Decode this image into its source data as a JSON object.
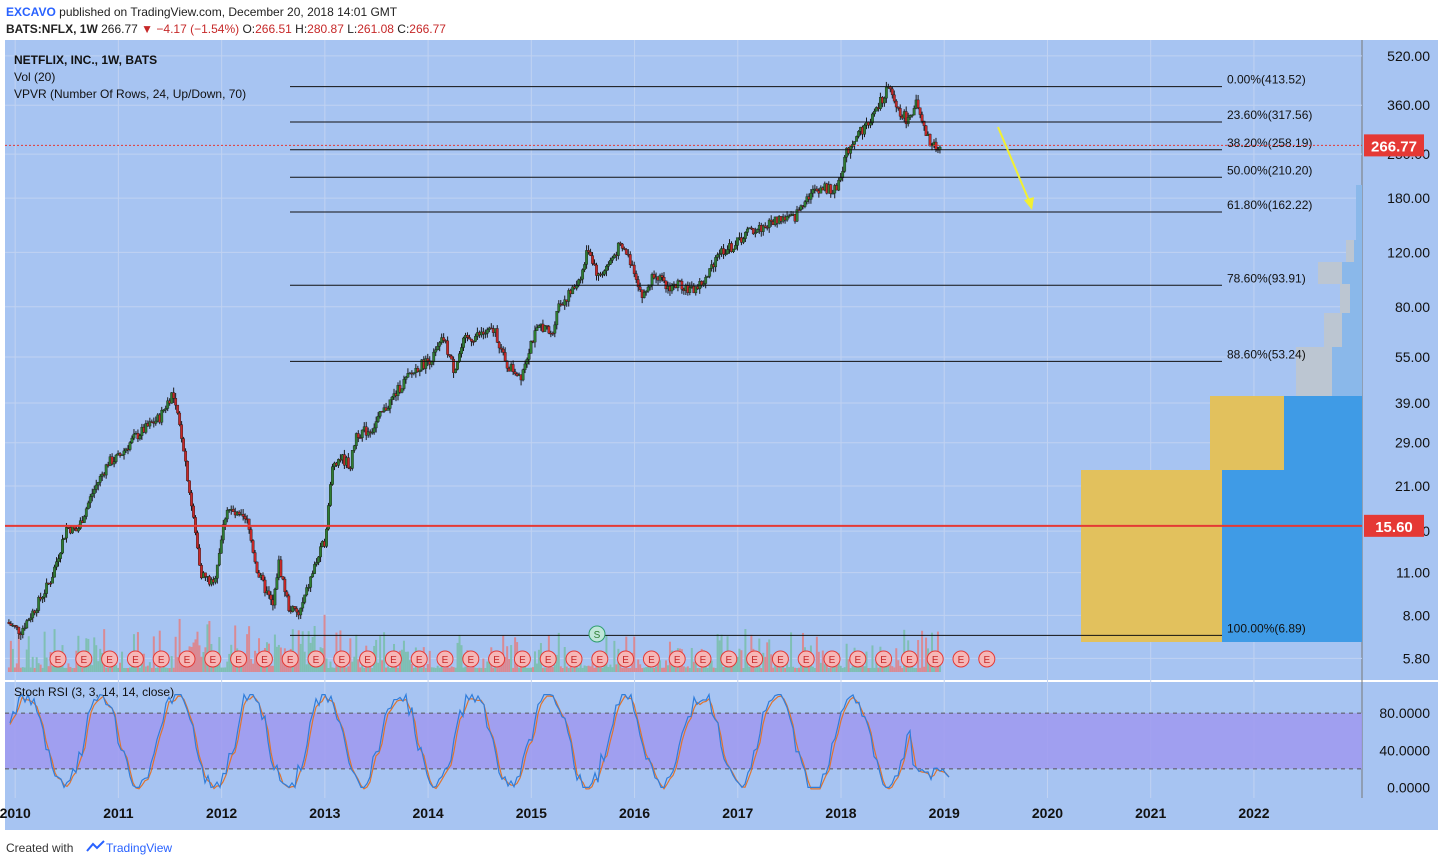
{
  "header": {
    "publisher": "EXCAVO",
    "published_text": "published on TradingView.com, December 20, 2018 14:01 GMT",
    "symbol": "BATS:NFLX, 1W",
    "last": "266.77",
    "change": "▼ −4.17 (−1.54%)",
    "ohlc_o_label": "O:",
    "ohlc_o": "266.51",
    "ohlc_h_label": "H:",
    "ohlc_h": "280.87",
    "ohlc_l_label": "L:",
    "ohlc_l": "261.08",
    "ohlc_c_label": "C:",
    "ohlc_c": "266.77"
  },
  "legend": {
    "title": "NETFLIX, INC., 1W, BATS",
    "vol": "Vol (20)",
    "vpvr": "VPVR (Number Of Rows, 24, Up/Down, 70)",
    "stoch": "Stoch RSI (3, 3, 14, 14, close)"
  },
  "colors": {
    "background": "#a7c4f2",
    "up": "#2e7d32",
    "down": "#c62828",
    "support_line": "#e53935",
    "price_badge": "#e53935",
    "stoch_band": "#9f99f0",
    "stoch_k": "#2f7ddb",
    "stoch_d": "#e0742e",
    "vpvr_up": "#3f9be6",
    "vpvr_down": "#e2c15d",
    "arrow": "#f2f032"
  },
  "chart_data": {
    "type": "line",
    "title": "NETFLIX, INC., 1W, BATS",
    "price_axis_ticks": [
      "520.00",
      "360.00",
      "250.00",
      "180.00",
      "120.00",
      "80.00",
      "55.00",
      "39.00",
      "29.00",
      "21.00",
      "15.00",
      "11.00",
      "8.00",
      "5.80"
    ],
    "scale": "log",
    "y_range": [
      5.4,
      560
    ],
    "x_ticks": [
      "2010",
      "2011",
      "2012",
      "2013",
      "2014",
      "2015",
      "2016",
      "2017",
      "2018",
      "2019",
      "2020",
      "2021",
      "2022"
    ],
    "last_price_label": "266.77",
    "support_price_label": "15.60",
    "support_price": 15.6,
    "fib_levels": [
      {
        "ratio": "0.00%",
        "price": 413.52,
        "label": "0.00%(413.52)"
      },
      {
        "ratio": "23.60%",
        "price": 317.56,
        "label": "23.60%(317.56)"
      },
      {
        "ratio": "38.20%",
        "price": 258.19,
        "label": "38.20%(258.19)"
      },
      {
        "ratio": "50.00%",
        "price": 210.2,
        "label": "50.00%(210.20)"
      },
      {
        "ratio": "61.80%",
        "price": 162.22,
        "label": "61.80%(162.22)"
      },
      {
        "ratio": "78.60%",
        "price": 93.91,
        "label": "78.60%(93.91)"
      },
      {
        "ratio": "88.60%",
        "price": 53.24,
        "label": "88.60%(53.24)"
      },
      {
        "ratio": "100.00%",
        "price": 6.89,
        "label": "100.00%(6.89)"
      }
    ],
    "price_series": [
      {
        "t": 2009.92,
        "p": 7.6
      },
      {
        "t": 2010.05,
        "p": 7.1
      },
      {
        "t": 2010.2,
        "p": 8.5
      },
      {
        "t": 2010.35,
        "p": 10.5
      },
      {
        "t": 2010.5,
        "p": 15.5
      },
      {
        "t": 2010.6,
        "p": 15.0
      },
      {
        "t": 2010.75,
        "p": 20.0
      },
      {
        "t": 2010.9,
        "p": 25.0
      },
      {
        "t": 2011.0,
        "p": 26.0
      },
      {
        "t": 2011.15,
        "p": 30.0
      },
      {
        "t": 2011.3,
        "p": 33.0
      },
      {
        "t": 2011.4,
        "p": 35.0
      },
      {
        "t": 2011.52,
        "p": 42.0
      },
      {
        "t": 2011.62,
        "p": 30.0
      },
      {
        "t": 2011.72,
        "p": 17.0
      },
      {
        "t": 2011.8,
        "p": 11.0
      },
      {
        "t": 2011.92,
        "p": 10.0
      },
      {
        "t": 2012.05,
        "p": 18.0
      },
      {
        "t": 2012.12,
        "p": 17.0
      },
      {
        "t": 2012.25,
        "p": 16.0
      },
      {
        "t": 2012.35,
        "p": 11.0
      },
      {
        "t": 2012.5,
        "p": 8.5
      },
      {
        "t": 2012.55,
        "p": 12.0
      },
      {
        "t": 2012.65,
        "p": 8.5
      },
      {
        "t": 2012.75,
        "p": 8.0
      },
      {
        "t": 2012.9,
        "p": 11.5
      },
      {
        "t": 2013.0,
        "p": 14.0
      },
      {
        "t": 2013.08,
        "p": 25.0
      },
      {
        "t": 2013.15,
        "p": 26.0
      },
      {
        "t": 2013.25,
        "p": 24.5
      },
      {
        "t": 2013.3,
        "p": 31.0
      },
      {
        "t": 2013.45,
        "p": 32.0
      },
      {
        "t": 2013.6,
        "p": 38.0
      },
      {
        "t": 2013.75,
        "p": 45.0
      },
      {
        "t": 2013.9,
        "p": 51.0
      },
      {
        "t": 2014.05,
        "p": 55.0
      },
      {
        "t": 2014.15,
        "p": 63.0
      },
      {
        "t": 2014.25,
        "p": 50.0
      },
      {
        "t": 2014.35,
        "p": 62.0
      },
      {
        "t": 2014.5,
        "p": 65.0
      },
      {
        "t": 2014.65,
        "p": 67.0
      },
      {
        "t": 2014.75,
        "p": 52.0
      },
      {
        "t": 2014.9,
        "p": 48.0
      },
      {
        "t": 2015.0,
        "p": 62.0
      },
      {
        "t": 2015.1,
        "p": 70.0
      },
      {
        "t": 2015.2,
        "p": 64.0
      },
      {
        "t": 2015.25,
        "p": 80.0
      },
      {
        "t": 2015.4,
        "p": 90.0
      },
      {
        "t": 2015.5,
        "p": 105.0
      },
      {
        "t": 2015.55,
        "p": 125.0
      },
      {
        "t": 2015.65,
        "p": 100.0
      },
      {
        "t": 2015.75,
        "p": 110.0
      },
      {
        "t": 2015.85,
        "p": 125.0
      },
      {
        "t": 2015.92,
        "p": 120.0
      },
      {
        "t": 2016.0,
        "p": 105.0
      },
      {
        "t": 2016.08,
        "p": 85.0
      },
      {
        "t": 2016.2,
        "p": 105.0
      },
      {
        "t": 2016.3,
        "p": 92.0
      },
      {
        "t": 2016.45,
        "p": 95.0
      },
      {
        "t": 2016.55,
        "p": 90.0
      },
      {
        "t": 2016.7,
        "p": 98.0
      },
      {
        "t": 2016.8,
        "p": 120.0
      },
      {
        "t": 2016.95,
        "p": 125.0
      },
      {
        "t": 2017.1,
        "p": 140.0
      },
      {
        "t": 2017.25,
        "p": 145.0
      },
      {
        "t": 2017.4,
        "p": 155.0
      },
      {
        "t": 2017.55,
        "p": 155.0
      },
      {
        "t": 2017.65,
        "p": 180.0
      },
      {
        "t": 2017.8,
        "p": 195.0
      },
      {
        "t": 2017.95,
        "p": 190.0
      },
      {
        "t": 2018.05,
        "p": 250.0
      },
      {
        "t": 2018.15,
        "p": 290.0
      },
      {
        "t": 2018.25,
        "p": 310.0
      },
      {
        "t": 2018.35,
        "p": 350.0
      },
      {
        "t": 2018.45,
        "p": 410.0
      },
      {
        "t": 2018.55,
        "p": 350.0
      },
      {
        "t": 2018.65,
        "p": 320.0
      },
      {
        "t": 2018.72,
        "p": 370.0
      },
      {
        "t": 2018.8,
        "p": 300.0
      },
      {
        "t": 2018.88,
        "p": 265.0
      },
      {
        "t": 2018.96,
        "p": 266.77
      }
    ],
    "stoch_rsi": {
      "ticks": [
        "80.0000",
        "40.0000",
        "0.0000"
      ],
      "y_range": [
        -5,
        105
      ],
      "overbought": 80,
      "oversold": 20
    }
  }
}
